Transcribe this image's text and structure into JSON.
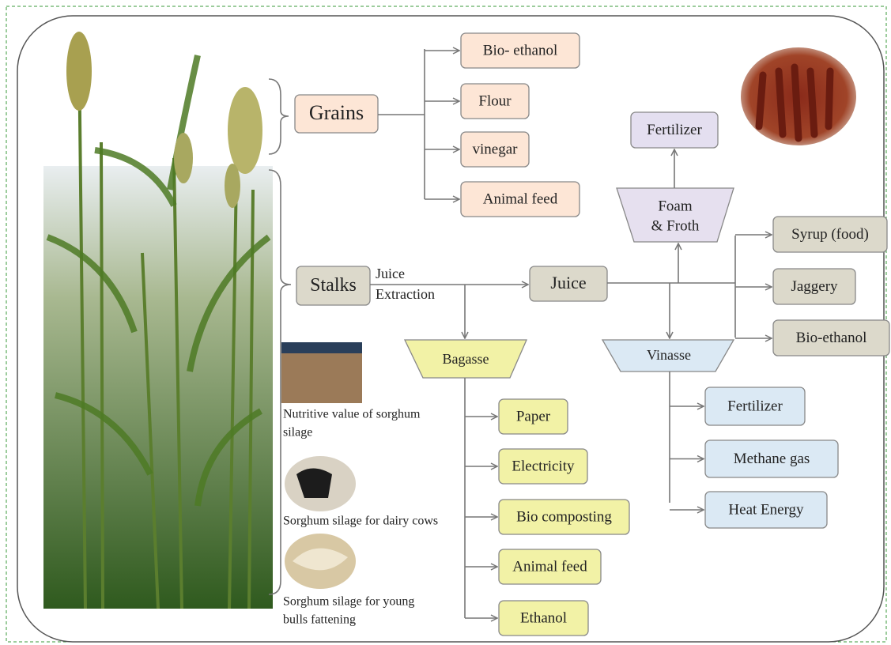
{
  "grains": {
    "label": "Grains",
    "products": [
      "Bio- ethanol",
      "Flour",
      "vinegar",
      "Animal feed"
    ]
  },
  "stalks": {
    "label": "Stalks",
    "process": [
      "Juice",
      "Extraction"
    ]
  },
  "juice": {
    "label": "Juice",
    "products": [
      "Syrup (food)",
      "Jaggery",
      "Bio-ethanol"
    ]
  },
  "foam": {
    "label": [
      "Foam",
      "& Froth"
    ],
    "product": "Fertilizer"
  },
  "bagasse": {
    "label": "Bagasse",
    "products": [
      "Paper",
      "Electricity",
      "Bio composting",
      "Animal feed",
      "Ethanol"
    ]
  },
  "vinasse": {
    "label": "Vinasse",
    "products": [
      "Fertilizer",
      "Methane gas",
      "Heat Energy"
    ]
  },
  "silage": [
    {
      "caption": [
        "Nutritive value of sorghum",
        "silage"
      ]
    },
    {
      "caption": [
        "Sorghum silage for dairy cows"
      ]
    },
    {
      "caption": [
        "Sorghum silage for young",
        "bulls fattening"
      ]
    }
  ]
}
